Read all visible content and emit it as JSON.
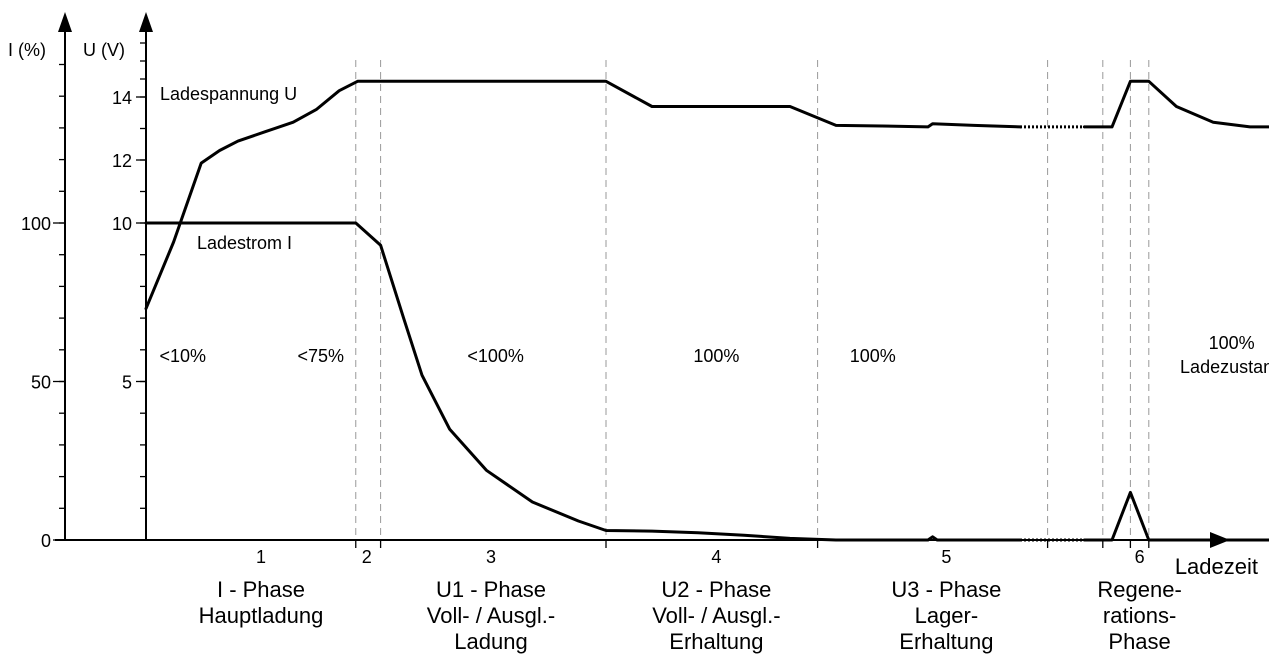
{
  "chart_data": {
    "type": "line",
    "title": "",
    "y_left_axis": {
      "label": "I (%)",
      "ticks": [
        {
          "value": 0,
          "label": "0"
        },
        {
          "value": 50,
          "label": "50"
        },
        {
          "value": 100,
          "label": "100"
        }
      ],
      "ylim": [
        0,
        100
      ]
    },
    "y_right_axis": {
      "label": "U (V)",
      "ticks": [
        {
          "value": 5,
          "label": "5"
        },
        {
          "value": 10,
          "label": "10"
        },
        {
          "value": 12,
          "label": "12"
        },
        {
          "value": 14,
          "label": "14"
        }
      ],
      "ylim": [
        0,
        14
      ]
    },
    "x_axis": {
      "label": "Ladezeit"
    },
    "series": [
      {
        "name": "Ladespannung U",
        "axis": "U (V)",
        "points": [
          [
            0,
            7.3
          ],
          [
            0.3,
            9.4
          ],
          [
            0.6,
            11.9
          ],
          [
            0.8,
            12.3
          ],
          [
            1.0,
            12.6
          ],
          [
            1.3,
            12.9
          ],
          [
            1.6,
            13.2
          ],
          [
            1.85,
            13.6
          ],
          [
            2.1,
            14.2
          ],
          [
            2.3,
            14.5
          ],
          [
            2.6,
            14.5
          ],
          [
            3.0,
            14.5
          ],
          [
            3.5,
            14.5
          ],
          [
            4.0,
            14.5
          ],
          [
            4.5,
            14.5
          ],
          [
            5.0,
            14.5
          ],
          [
            5.5,
            13.7
          ],
          [
            6.0,
            13.7
          ],
          [
            6.5,
            13.7
          ],
          [
            7.0,
            13.7
          ],
          [
            7.5,
            13.1
          ],
          [
            8.0,
            13.08
          ],
          [
            8.5,
            13.05
          ],
          [
            8.55,
            13.15
          ],
          [
            9.0,
            13.1
          ],
          [
            9.5,
            13.05
          ],
          [
            10.5,
            13.05
          ],
          [
            10.7,
            14.5
          ],
          [
            10.9,
            14.5
          ],
          [
            11.2,
            13.7
          ],
          [
            11.6,
            13.2
          ],
          [
            12.0,
            13.05
          ],
          [
            12.5,
            13.05
          ]
        ],
        "gap_x": [
          9.5,
          10.2
        ]
      },
      {
        "name": "Ladestrom I",
        "axis": "I (%)",
        "points": [
          [
            0,
            100
          ],
          [
            1.0,
            100
          ],
          [
            2.0,
            100
          ],
          [
            2.28,
            100
          ],
          [
            2.55,
            93
          ],
          [
            2.8,
            70
          ],
          [
            3.0,
            52
          ],
          [
            3.3,
            35
          ],
          [
            3.7,
            22
          ],
          [
            4.2,
            12
          ],
          [
            4.7,
            6
          ],
          [
            5.0,
            3
          ],
          [
            5.5,
            2.8
          ],
          [
            6.0,
            2.3
          ],
          [
            6.5,
            1.5
          ],
          [
            7.0,
            0.5
          ],
          [
            7.5,
            0
          ],
          [
            8.5,
            0
          ],
          [
            8.55,
            1
          ],
          [
            8.6,
            0
          ],
          [
            9.5,
            0
          ],
          [
            10.5,
            0
          ],
          [
            10.7,
            15
          ],
          [
            10.9,
            0
          ],
          [
            12.5,
            0
          ]
        ],
        "gap_x": [
          9.5,
          10.2
        ]
      }
    ],
    "phase_boundaries": [
      2.28,
      2.55,
      5.0,
      7.3,
      9.8,
      10.4,
      10.7,
      10.9
    ],
    "charge_state_labels": [
      {
        "x": 0.4,
        "text": "<10%"
      },
      {
        "x": 1.9,
        "text": "<75%"
      },
      {
        "x": 3.8,
        "text": "<100%"
      },
      {
        "x": 6.2,
        "text": "100%"
      },
      {
        "x": 7.9,
        "text": "100%"
      },
      {
        "x": 11.8,
        "text": "100%",
        "text2": "Ladezustand"
      }
    ],
    "phases": [
      {
        "number": "1",
        "x_center": 1.25,
        "lines": [
          "I - Phase",
          "Hauptladung"
        ]
      },
      {
        "number": "2",
        "x_center": 2.4,
        "lines": []
      },
      {
        "number": "3",
        "x_center": 3.75,
        "lines": [
          "U1 - Phase",
          "Voll- / Ausgl.-",
          "Ladung"
        ]
      },
      {
        "number": "4",
        "x_center": 6.2,
        "lines": [
          "U2 - Phase",
          "Voll- / Ausgl.-",
          "Erhaltung"
        ]
      },
      {
        "number": "5",
        "x_center": 8.7,
        "lines": [
          "U3 - Phase",
          "Lager-",
          "Erhaltung"
        ]
      },
      {
        "number": "6",
        "x_center": 10.8,
        "lines": [
          "Regene-",
          "rations-",
          "Phase"
        ]
      }
    ],
    "xlim": [
      0,
      13
    ],
    "grid": false
  }
}
